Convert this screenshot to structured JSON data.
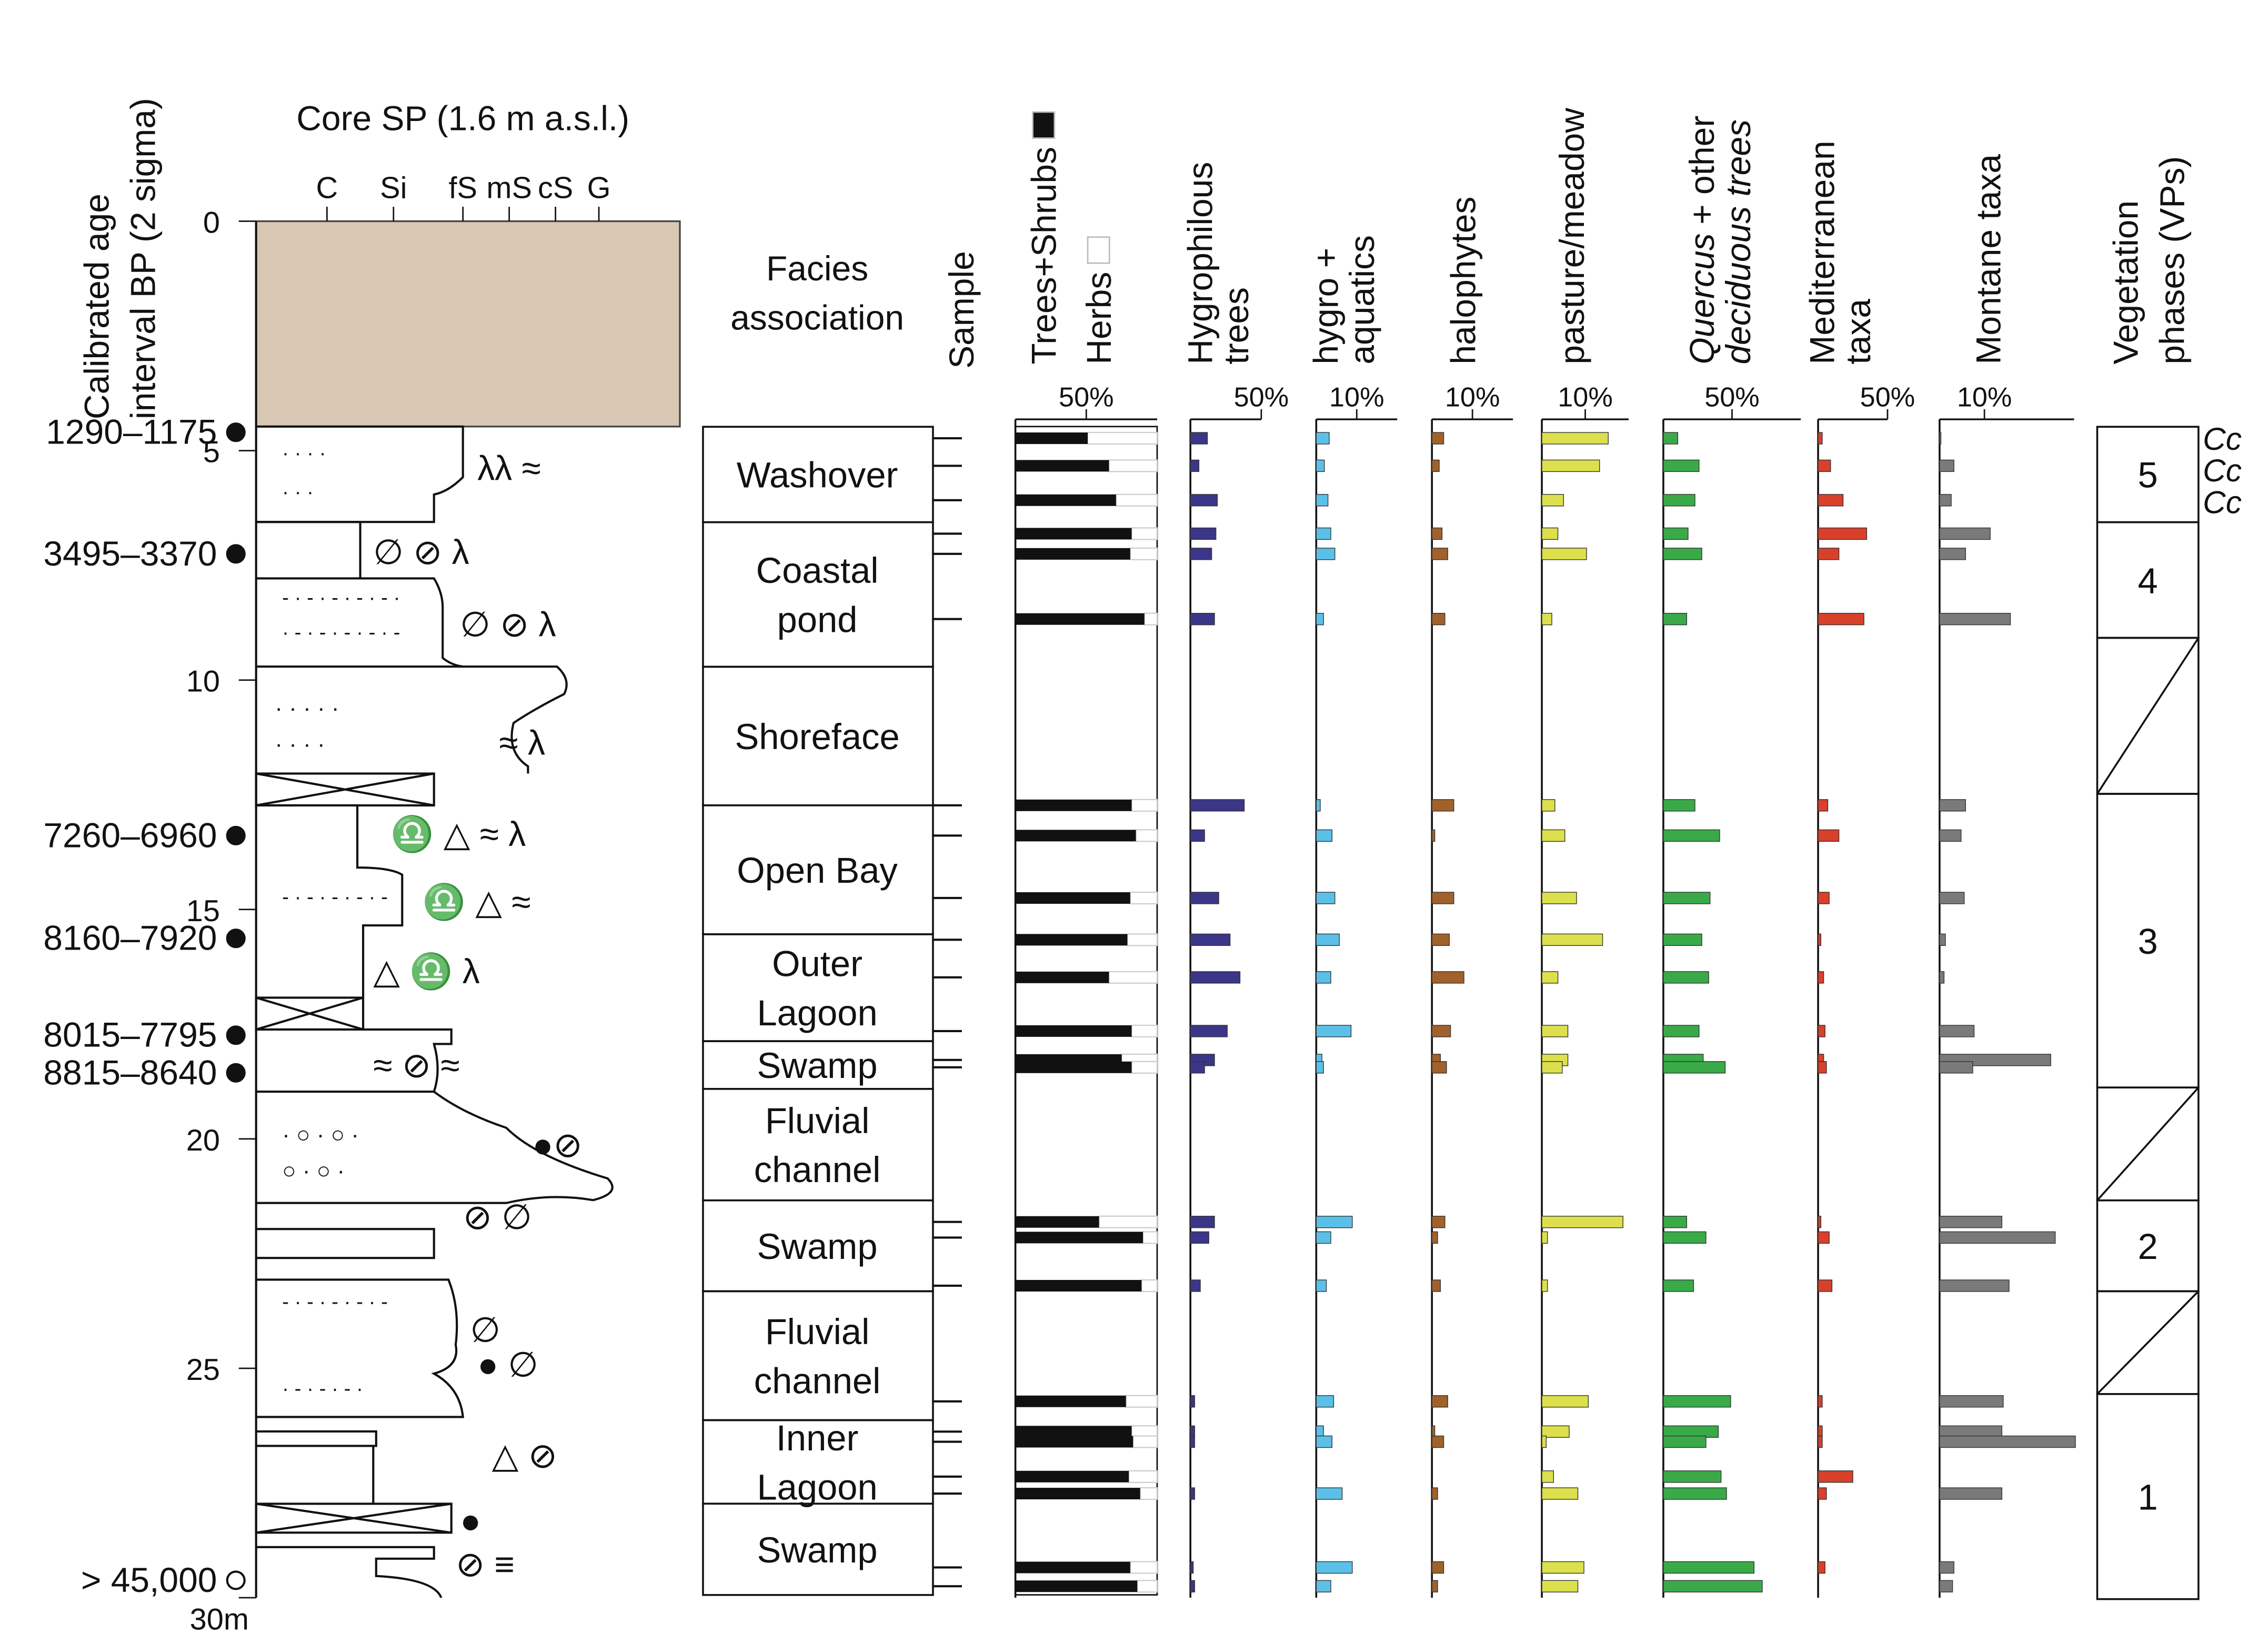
{
  "title": "Core SP (1.6 m a.s.l.)",
  "age_axis_label": [
    "Calibrated age",
    "interval BP (2 sigma)"
  ],
  "grain_sizes": [
    "C",
    "Si",
    "fS",
    "mS",
    "cS",
    "G"
  ],
  "depth_axis": {
    "ylim": [
      0,
      30
    ],
    "yticks": [
      0,
      5,
      10,
      15,
      20,
      25,
      {
        "value": 30,
        "label": "30m"
      }
    ]
  },
  "ages": [
    {
      "label": "1290–1175",
      "depth": 4.6,
      "marker": "filled"
    },
    {
      "label": "3495–3370",
      "depth": 7.25,
      "marker": "filled"
    },
    {
      "label": "7260–6960",
      "depth": 13.39,
      "marker": "filled"
    },
    {
      "label": "8160–7920",
      "depth": 15.63,
      "marker": "filled"
    },
    {
      "label": "8015–7795",
      "depth": 17.74,
      "marker": "filled"
    },
    {
      "label": "8815–8640",
      "depth": 18.56,
      "marker": "filled"
    },
    {
      "label": "> 45,000",
      "depth": 29.62,
      "marker": "open"
    }
  ],
  "facies": {
    "title": [
      "Facies",
      "association"
    ],
    "boundaries": [
      4.48,
      6.56,
      9.71,
      12.73,
      15.54,
      17.87,
      18.91,
      21.34,
      23.32,
      26.13,
      27.95,
      29.94
    ],
    "labels": [
      [
        "Washover"
      ],
      [
        "Coastal",
        "pond"
      ],
      [
        "Shoreface"
      ],
      [
        "Open Bay"
      ],
      [
        "Outer",
        "Lagoon"
      ],
      [
        "Swamp"
      ],
      [
        "Fluvial",
        "channel"
      ],
      [
        "Swamp"
      ],
      [
        "Fluvial",
        "channel"
      ],
      [
        "Inner",
        "Lagoon"
      ],
      [
        "Swamp"
      ]
    ]
  },
  "sample_label": "Sample",
  "samples": [
    4.73,
    5.33,
    6.08,
    6.81,
    7.25,
    8.67,
    12.73,
    13.39,
    14.75,
    15.66,
    16.48,
    17.65,
    18.28,
    18.44,
    21.81,
    22.15,
    23.2,
    25.72,
    26.38,
    26.6,
    27.36,
    27.73,
    29.34,
    29.75
  ],
  "panels": [
    {
      "title_lines": [
        [
          "Trees+Shrubs"
        ],
        [
          "Herbs"
        ]
      ],
      "legend_colors": [
        "#111111",
        "#ffffff"
      ],
      "color": "#111111",
      "xlim": [
        0,
        100
      ],
      "xticks": [
        {
          "value": 50,
          "label": "50%"
        }
      ],
      "values": [
        51,
        66,
        71,
        82,
        81,
        91,
        82,
        85,
        81,
        79,
        66,
        82,
        75,
        82,
        59,
        90,
        89,
        78,
        82,
        83,
        80,
        88,
        81,
        86
      ]
    },
    {
      "title_lines": [
        [
          "Hygrophilous"
        ],
        [
          "trees"
        ]
      ],
      "color": "#3b3688",
      "xlim": [
        0,
        50
      ],
      "xticks": [
        {
          "value": 50,
          "label": "50%"
        }
      ],
      "values": [
        12,
        6,
        19,
        18,
        15,
        17,
        38,
        10,
        20,
        28,
        35,
        26,
        17,
        10,
        17,
        13,
        7,
        3,
        3,
        3,
        0,
        3,
        2,
        3
      ]
    },
    {
      "title_lines": [
        [
          "hygro +"
        ],
        [
          "aquatics"
        ]
      ],
      "color": "#5bc0e8",
      "xlim": [
        0,
        20
      ],
      "xticks": [
        {
          "value": 10,
          "label": "10%"
        }
      ],
      "values": [
        3.2,
        2,
        2.9,
        3.6,
        4.6,
        1.8,
        1,
        3.9,
        4.6,
        5.7,
        3.6,
        8.6,
        1.4,
        1.8,
        8.9,
        3.6,
        2.5,
        4.3,
        1.8,
        3.9,
        0,
        6.4,
        8.9,
        3.6
      ]
    },
    {
      "title_lines": [
        [
          "halophytes"
        ]
      ],
      "color": "#a0622a",
      "xlim": [
        0,
        20
      ],
      "xticks": [
        {
          "value": 10,
          "label": "10%"
        }
      ],
      "values": [
        2.9,
        1.8,
        0,
        2.5,
        3.9,
        3.2,
        5.4,
        0.7,
        5.4,
        4.3,
        7.9,
        4.6,
        2.1,
        3.6,
        3.2,
        1.4,
        2.1,
        3.9,
        0.7,
        2.9,
        0,
        1.4,
        2.9,
        1.4
      ]
    },
    {
      "title_lines": [
        [
          "pasture/meadow"
        ]
      ],
      "color": "#dbe04c",
      "xlim": [
        0,
        20
      ],
      "xticks": [
        {
          "value": 10,
          "label": "10%"
        }
      ],
      "values": [
        15.3,
        13.3,
        5,
        3.7,
        10.3,
        2.3,
        3,
        5.3,
        8,
        14,
        3.7,
        6,
        6,
        4.7,
        18.7,
        1.3,
        1.3,
        10.7,
        6.3,
        1,
        2.7,
        8.3,
        9.7,
        8.3
      ]
    },
    {
      "title_lines": [
        [
          "Quercus",
          "+ other"
        ],
        [
          "deciduous trees"
        ]
      ],
      "italic_first": true,
      "color": "#3aaa48",
      "xlim": [
        0,
        100
      ],
      "xticks": [
        {
          "value": 50,
          "label": "50%"
        }
      ],
      "values": [
        10.5,
        26,
        23,
        18,
        28,
        17,
        23,
        41,
        34,
        28,
        33,
        26,
        29,
        45,
        17,
        31,
        22,
        49,
        40,
        31,
        42,
        46,
        66,
        72
      ]
    },
    {
      "title_lines": [
        [
          "Mediterranean"
        ],
        [
          "taxa"
        ]
      ],
      "color": "#d9402a",
      "xlim": [
        0,
        50
      ],
      "xticks": [
        {
          "value": 50,
          "label": "50%"
        }
      ],
      "values": [
        3,
        9,
        18,
        35,
        15,
        33,
        7,
        15,
        8,
        2,
        4,
        5,
        4,
        6,
        2,
        8,
        10,
        3,
        3,
        3,
        25,
        6,
        5,
        0
      ]
    },
    {
      "title_lines": [
        [
          "Montane taxa"
        ]
      ],
      "color": "#7a7a7a",
      "xlim": [
        0,
        30
      ],
      "xticks": [
        {
          "value": 10,
          "label": "10%"
        }
      ],
      "values": [
        0.3,
        3.2,
        2.6,
        11.3,
        5.8,
        15.8,
        5.8,
        4.8,
        5.5,
        1.3,
        1,
        7.7,
        24.8,
        7.4,
        13.9,
        25.8,
        15.5,
        14.2,
        13.9,
        30.3,
        0,
        13.9,
        3.2,
        2.9
      ]
    }
  ],
  "phases": {
    "title": [
      "Vegetation",
      "phases (VPs)"
    ],
    "boundaries": [
      4.48,
      6.56,
      9.08,
      12.48,
      18.88,
      21.34,
      23.32,
      25.56,
      30.03
    ],
    "labels": [
      "5",
      "4",
      null,
      "3",
      null,
      "2",
      null,
      "1"
    ],
    "notes": [
      "Cc",
      "Cc",
      "Cc"
    ]
  }
}
